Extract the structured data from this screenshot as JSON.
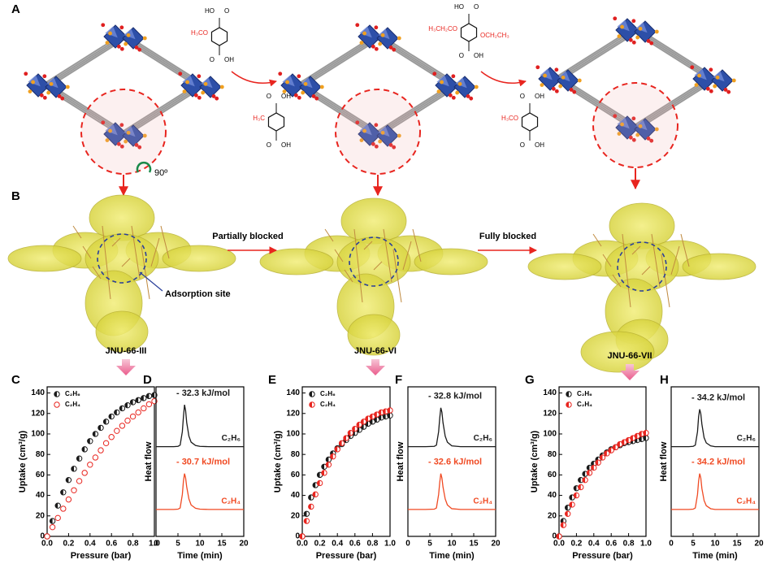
{
  "diagram": {
    "panel_labels": [
      "A",
      "B"
    ],
    "rotation": "90º",
    "arrows": [
      "Partially blocked",
      "Fully blocked"
    ],
    "site_label": "Adsorption site",
    "frameworks": [
      "JNU-66-III",
      "JNU-66-VI",
      "JNU-66-VII"
    ],
    "linkers": [
      {
        "top": [
          "HO",
          "O"
        ],
        "sub": [
          "H₃CO"
        ],
        "bottom": [
          "O",
          "OH"
        ]
      },
      {
        "top": [
          "O",
          "OH"
        ],
        "sub": [
          "H₃C"
        ],
        "bottom": [
          "O",
          "OH"
        ]
      },
      {
        "top": [
          "HO",
          "O"
        ],
        "sub": [
          "H₃CH₂CO",
          "OCH₂CH₃"
        ],
        "bottom": [
          "O",
          "OH"
        ]
      },
      {
        "top": [
          "O",
          "OH"
        ],
        "sub": [
          "H₃CO"
        ],
        "bottom": [
          "O",
          "OH"
        ]
      }
    ]
  },
  "chart_data": [
    {
      "type": "scatter",
      "panel": "C",
      "xlabel": "Pressure (bar)",
      "ylabel": "Uptake (cm³/g)",
      "x": [
        0,
        0.05,
        0.1,
        0.15,
        0.2,
        0.25,
        0.3,
        0.35,
        0.4,
        0.45,
        0.5,
        0.55,
        0.6,
        0.65,
        0.7,
        0.75,
        0.8,
        0.85,
        0.9,
        0.95,
        1.0
      ],
      "series": [
        {
          "name": "C₂H₆",
          "color": "#1a1a1a",
          "marker": "half",
          "values": [
            0,
            15,
            30,
            43,
            55,
            66,
            76,
            85,
            93,
            100,
            106,
            112,
            117,
            121,
            125,
            128,
            131,
            133,
            135,
            137,
            138
          ]
        },
        {
          "name": "C₂H₄",
          "color": "#e8251f",
          "marker": "open",
          "values": [
            0,
            9,
            18,
            27,
            36,
            45,
            54,
            62,
            70,
            77,
            84,
            91,
            97,
            103,
            108,
            113,
            117,
            121,
            125,
            129,
            132
          ]
        }
      ],
      "xlim": [
        0,
        1.0
      ],
      "xticks": [
        {
          "value": 0,
          "label": "0.0"
        },
        0.2,
        0.4,
        0.6,
        0.8,
        {
          "value": 1,
          "label": "1.0"
        }
      ],
      "ylim": [
        0,
        146
      ],
      "yticks": [
        0,
        20,
        40,
        60,
        80,
        100,
        120,
        140
      ]
    },
    {
      "type": "line",
      "panel": "D",
      "xlabel": "Time (min)",
      "ylabel": "Heat flow",
      "x": [
        0,
        2,
        4,
        5,
        5.5,
        6,
        6.25,
        6.5,
        6.75,
        7,
        7.5,
        8,
        9,
        10,
        12,
        14,
        16,
        18,
        20
      ],
      "series": [
        {
          "name": "C₂H₆",
          "color": "#1a1a1a",
          "annotation": "- 32.3 kJ/mol",
          "values": [
            6.0,
            6.0,
            6.0,
            6.02,
            6.1,
            7.0,
            8.0,
            8.8,
            8.4,
            7.6,
            6.7,
            6.3,
            6.08,
            6.02,
            6.0,
            6.0,
            6.0,
            6.0,
            6.0
          ]
        },
        {
          "name": "C₂H₄",
          "color": "#f04a23",
          "annotation": "- 30.7 kJ/mol",
          "values": [
            1.8,
            1.8,
            1.8,
            1.82,
            1.9,
            2.8,
            3.7,
            4.2,
            3.9,
            3.3,
            2.5,
            2.1,
            1.88,
            1.82,
            1.8,
            1.8,
            1.8,
            1.8,
            1.8
          ]
        }
      ],
      "xlim": [
        0,
        20
      ],
      "xticks": [
        0,
        5,
        10,
        15,
        20
      ],
      "ylim": [
        0,
        10
      ]
    },
    {
      "type": "scatter",
      "panel": "E",
      "xlabel": "Pressure (bar)",
      "ylabel": "Uptake (cm³/g)",
      "x": [
        0,
        0.05,
        0.1,
        0.15,
        0.2,
        0.25,
        0.3,
        0.35,
        0.4,
        0.45,
        0.5,
        0.55,
        0.6,
        0.65,
        0.7,
        0.75,
        0.8,
        0.85,
        0.9,
        0.95,
        1.0
      ],
      "series": [
        {
          "name": "C₂H₆",
          "color": "#1a1a1a",
          "marker": "half",
          "values": [
            0,
            22,
            38,
            50,
            60,
            68,
            75,
            81,
            86,
            90,
            94,
            98,
            101,
            104,
            107,
            110,
            112,
            114,
            116,
            117,
            118
          ]
        },
        {
          "name": "C₂H₄",
          "color": "#e8251f",
          "marker": "half",
          "values": [
            0,
            15,
            29,
            41,
            52,
            62,
            70,
            78,
            85,
            91,
            96,
            101,
            105,
            109,
            112,
            115,
            117,
            119,
            121,
            122,
            123
          ]
        }
      ],
      "xlim": [
        0,
        1.0
      ],
      "xticks": [
        {
          "value": 0,
          "label": "0.0"
        },
        0.2,
        0.4,
        0.6,
        0.8,
        {
          "value": 1,
          "label": "1.0"
        }
      ],
      "ylim": [
        0,
        146
      ],
      "yticks": [
        0,
        20,
        40,
        60,
        80,
        100,
        120,
        140
      ]
    },
    {
      "type": "line",
      "panel": "F",
      "xlabel": "Time (min)",
      "ylabel": "Heat flow",
      "x": [
        0,
        2,
        4,
        6,
        6.5,
        7,
        7.25,
        7.5,
        7.75,
        8,
        8.5,
        9,
        10,
        12,
        14,
        16,
        18,
        20
      ],
      "series": [
        {
          "name": "C₂H₆",
          "color": "#1a1a1a",
          "annotation": "- 32.8 kJ/mol",
          "values": [
            6.0,
            6.0,
            6.0,
            6.02,
            6.1,
            7.0,
            7.9,
            8.6,
            8.3,
            7.6,
            6.7,
            6.3,
            6.05,
            6.0,
            6.0,
            6.0,
            6.0,
            6.0
          ]
        },
        {
          "name": "C₂H₄",
          "color": "#f04a23",
          "annotation": "- 32.6 kJ/mol",
          "values": [
            1.8,
            1.8,
            1.8,
            1.82,
            1.9,
            2.8,
            3.6,
            4.2,
            3.9,
            3.3,
            2.5,
            2.1,
            1.85,
            1.8,
            1.8,
            1.8,
            1.8,
            1.8
          ]
        }
      ],
      "xlim": [
        0,
        20
      ],
      "xticks": [
        0,
        5,
        10,
        15,
        20
      ],
      "ylim": [
        0,
        10
      ]
    },
    {
      "type": "scatter",
      "panel": "G",
      "xlabel": "Pressure (bar)",
      "ylabel": "Uptake (cm³/g)",
      "x": [
        0,
        0.05,
        0.1,
        0.15,
        0.2,
        0.25,
        0.3,
        0.35,
        0.4,
        0.45,
        0.5,
        0.55,
        0.6,
        0.65,
        0.7,
        0.75,
        0.8,
        0.85,
        0.9,
        0.95,
        1.0
      ],
      "series": [
        {
          "name": "C₂H₆",
          "color": "#1a1a1a",
          "marker": "half",
          "values": [
            0,
            15,
            28,
            38,
            47,
            55,
            61,
            67,
            71,
            75,
            79,
            82,
            85,
            87,
            89,
            91,
            92,
            93,
            94,
            95,
            96
          ]
        },
        {
          "name": "C₂H₄",
          "color": "#e8251f",
          "marker": "half",
          "values": [
            0,
            11,
            22,
            31,
            40,
            48,
            55,
            62,
            67,
            72,
            77,
            81,
            84,
            87,
            90,
            92,
            94,
            96,
            98,
            100,
            101
          ]
        }
      ],
      "xlim": [
        0,
        1.0
      ],
      "xticks": [
        {
          "value": 0,
          "label": "0.0"
        },
        0.2,
        0.4,
        0.6,
        0.8,
        {
          "value": 1,
          "label": "1.0"
        }
      ],
      "ylim": [
        0,
        146
      ],
      "yticks": [
        0,
        20,
        40,
        60,
        80,
        100,
        120,
        140
      ]
    },
    {
      "type": "line",
      "panel": "H",
      "xlabel": "Time (min)",
      "ylabel": "Heat flow",
      "x": [
        0,
        2,
        4,
        5,
        5.5,
        6,
        6.25,
        6.5,
        6.75,
        7,
        7.5,
        8,
        9,
        10,
        12,
        14,
        16,
        18,
        20
      ],
      "series": [
        {
          "name": "C₂H₆",
          "color": "#1a1a1a",
          "annotation": "- 34.2 kJ/mol",
          "values": [
            6.0,
            6.0,
            6.0,
            6.02,
            6.1,
            7.0,
            8.0,
            8.5,
            8.2,
            7.5,
            6.6,
            6.25,
            6.05,
            6.0,
            6.0,
            6.0,
            6.0,
            6.0,
            6.0
          ]
        },
        {
          "name": "C₂H₄",
          "color": "#f04a23",
          "annotation": "- 34.2 kJ/mol",
          "values": [
            1.8,
            1.8,
            1.8,
            1.82,
            1.9,
            2.8,
            3.7,
            4.2,
            3.9,
            3.2,
            2.4,
            2.05,
            1.85,
            1.8,
            1.8,
            1.8,
            1.8,
            1.8,
            1.8
          ]
        }
      ],
      "xlim": [
        0,
        20
      ],
      "xticks": [
        0,
        5,
        10,
        15,
        20
      ],
      "ylim": [
        0,
        10
      ]
    }
  ]
}
